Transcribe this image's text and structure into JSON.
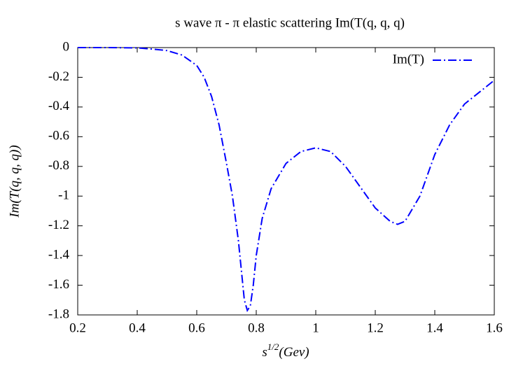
{
  "chart_data": {
    "type": "line",
    "title": "s wave π - π elastic scattering Im(T(q, q, q)",
    "x_label": {
      "base": "s",
      "superscript": "1/2",
      "rest": "(Gev)"
    },
    "y_label": "Im(T(q, q, q))",
    "x": [
      0.2,
      0.3,
      0.4,
      0.45,
      0.5,
      0.55,
      0.6,
      0.625,
      0.65,
      0.675,
      0.7,
      0.72,
      0.74,
      0.75,
      0.76,
      0.77,
      0.78,
      0.79,
      0.8,
      0.82,
      0.85,
      0.9,
      0.95,
      1.0,
      1.05,
      1.1,
      1.15,
      1.2,
      1.25,
      1.275,
      1.3,
      1.35,
      1.4,
      1.45,
      1.5,
      1.55,
      1.6
    ],
    "series": [
      {
        "name": "Im(T)",
        "color": "#0000ff",
        "values": [
          0,
          0,
          -0.002,
          -0.01,
          -0.02,
          -0.05,
          -0.12,
          -0.2,
          -0.33,
          -0.52,
          -0.78,
          -1.0,
          -1.3,
          -1.5,
          -1.7,
          -1.77,
          -1.74,
          -1.6,
          -1.4,
          -1.15,
          -0.95,
          -0.78,
          -0.7,
          -0.675,
          -0.7,
          -0.8,
          -0.94,
          -1.08,
          -1.17,
          -1.19,
          -1.17,
          -1.0,
          -0.72,
          -0.52,
          -0.38,
          -0.3,
          -0.22
        ]
      }
    ],
    "xlim": [
      0.2,
      1.6
    ],
    "xticks": [
      0.2,
      0.4,
      0.6,
      0.8,
      1,
      1.2,
      1.4,
      1.6
    ],
    "ylim": [
      -1.8,
      0
    ],
    "yticks": [
      0,
      -0.2,
      -0.4,
      -0.6,
      -0.8,
      -1,
      -1.2,
      -1.4,
      -1.6,
      -1.8
    ],
    "legend": "top-right",
    "line_style": "dash-dot"
  }
}
